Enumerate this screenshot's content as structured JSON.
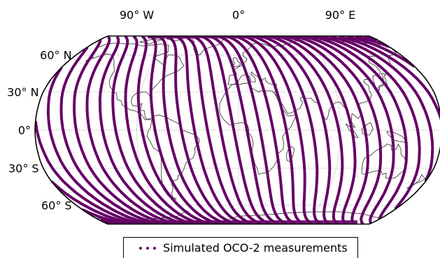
{
  "map": {
    "projection": "robinson",
    "track_color": "#660066",
    "coast_color": "#404040",
    "grid_color": "#a0a0a0",
    "lon_labels": [
      {
        "label": "90° W",
        "lon": -90
      },
      {
        "label": "0°",
        "lon": 0
      },
      {
        "label": "90° E",
        "lon": 90
      }
    ],
    "lat_labels": [
      {
        "label": "60° N",
        "lat": 60
      },
      {
        "label": "30° N",
        "lat": 30
      },
      {
        "label": "0°",
        "lat": 0
      },
      {
        "label": "30° S",
        "lat": -30
      },
      {
        "label": "60° S",
        "lat": -60
      }
    ]
  },
  "legend": {
    "label": "Simulated OCO-2 measurements"
  }
}
